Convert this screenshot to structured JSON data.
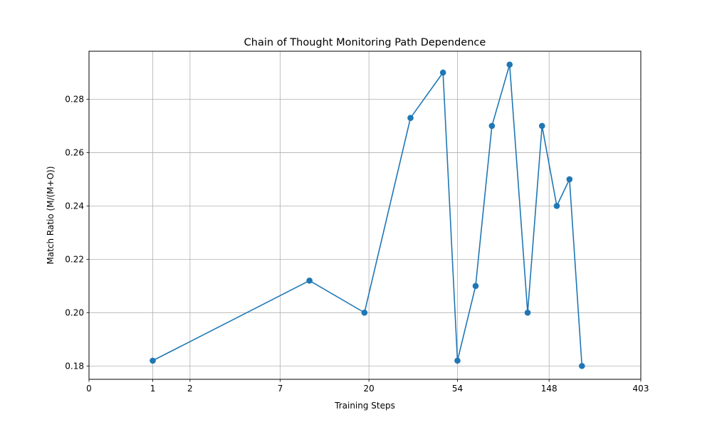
{
  "chart_data": {
    "type": "line",
    "title": "Chain of Thought Monitoring Path Dependence",
    "xlabel": "Training Steps",
    "ylabel": "Match Ratio (M/(M+O))",
    "x_scale": "log1p",
    "x_ticks": [
      0,
      1,
      2,
      7,
      20,
      54,
      148,
      403
    ],
    "x_tick_labels": [
      "0",
      "1",
      "2",
      "7",
      "20",
      "54",
      "148",
      "403"
    ],
    "y_ticks": [
      0.18,
      0.2,
      0.22,
      0.24,
      0.26,
      0.28
    ],
    "y_tick_labels": [
      "0.18",
      "0.20",
      "0.22",
      "0.24",
      "0.26",
      "0.28"
    ],
    "xlim": [
      0,
      403
    ],
    "ylim": [
      0.175,
      0.298
    ],
    "grid": true,
    "series": [
      {
        "color": "#1f77b4",
        "x": [
          1,
          10,
          19,
          32,
          46,
          54,
          66,
          79,
          96,
          117,
          137,
          161,
          185,
          212
        ],
        "y": [
          0.182,
          0.212,
          0.2,
          0.273,
          0.29,
          0.182,
          0.21,
          0.27,
          0.293,
          0.2,
          0.27,
          0.24,
          0.25,
          0.18
        ]
      }
    ]
  }
}
